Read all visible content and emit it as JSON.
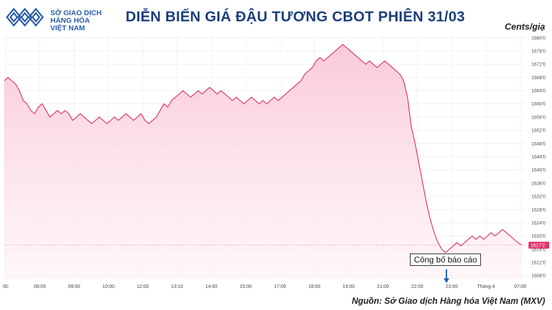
{
  "header": {
    "logo": {
      "line1": "SỞ GIAO DỊCH",
      "line2": "HÀNG HÓA",
      "line3": "VIỆT NAM"
    },
    "title": "DIỄN BIẾN GIÁ ĐẬU TƯƠNG CBOT PHIÊN 31/03",
    "unit": "Cents/giạ"
  },
  "footer": {
    "source": "Nguồn: Sở Giao dịch Hàng hóa Việt Nam (MXV)"
  },
  "annotation": {
    "label": "Công bố báo cáo",
    "at_time": "23:00"
  },
  "colors": {
    "line": "#e0356b",
    "fill_top": "#f9c4d4",
    "fill_bottom": "#fff1f5",
    "title": "#1d3f7a",
    "arrow": "#1e63b8"
  },
  "chart_data": {
    "type": "area",
    "title": "DIỄN BIẾN GIÁ ĐẬU TƯƠNG CBOT PHIÊN 31/03",
    "ylabel": "Cents/giạ",
    "ylim": [
      1607,
      1681
    ],
    "yticks": [
      "1608'0",
      "1612'0",
      "1616'0",
      "1620'0",
      "1624'0",
      "1628'0",
      "1632'0",
      "1636'0",
      "1640'0",
      "1644'0",
      "1648'0",
      "1652'0",
      "1656'0",
      "1660'0",
      "1664'0",
      "1668'0",
      "1672'0",
      "1676'0",
      "1680'0"
    ],
    "xticks": [
      "00",
      "08:00",
      "09:00",
      "10:00",
      "12:00",
      "13:10",
      "14:00",
      "15:00",
      "17:00",
      "18:00",
      "19:00",
      "21:00",
      "22:00",
      "23:00",
      "Tháng 4",
      "07:00"
    ],
    "last_value_label": "1617'2",
    "last_value": 1617.25,
    "grid": true,
    "values": [
      1667,
      1668,
      1667,
      1666,
      1664,
      1661,
      1660,
      1658,
      1657,
      1659,
      1660,
      1658,
      1656,
      1657,
      1658,
      1657,
      1658,
      1657,
      1655,
      1656,
      1657,
      1656,
      1655,
      1654,
      1655,
      1656,
      1655,
      1654,
      1655,
      1656,
      1655,
      1656,
      1657,
      1656,
      1655,
      1656,
      1657,
      1655,
      1654,
      1655,
      1656,
      1658,
      1660,
      1659,
      1661,
      1662,
      1663,
      1664,
      1663,
      1662,
      1663,
      1664,
      1663,
      1664,
      1665,
      1664,
      1663,
      1664,
      1663,
      1662,
      1661,
      1662,
      1661,
      1660,
      1661,
      1662,
      1661,
      1660,
      1661,
      1660,
      1661,
      1662,
      1661,
      1662,
      1663,
      1664,
      1665,
      1666,
      1667,
      1669,
      1670,
      1671,
      1673,
      1674,
      1673,
      1674,
      1675,
      1676,
      1677,
      1678,
      1677,
      1676,
      1675,
      1674,
      1673,
      1672,
      1673,
      1672,
      1671,
      1672,
      1673,
      1672,
      1671,
      1670,
      1669,
      1667,
      1662,
      1653,
      1648,
      1642,
      1636,
      1630,
      1625,
      1621,
      1618,
      1616,
      1615,
      1616,
      1617,
      1618,
      1617,
      1618,
      1619,
      1620,
      1619,
      1620,
      1619,
      1620,
      1621,
      1620,
      1621,
      1622,
      1621,
      1620,
      1619,
      1618,
      1617.25
    ]
  }
}
